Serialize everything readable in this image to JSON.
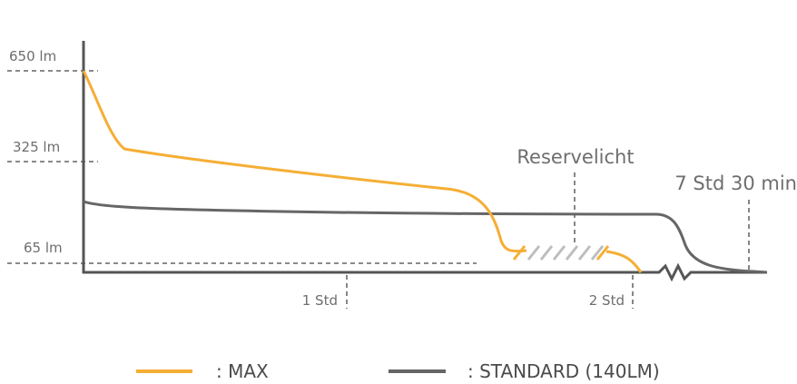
{
  "chart_data": {
    "type": "line",
    "title": "",
    "xlabel": "",
    "ylabel": "",
    "y_ticks": [
      "650 lm",
      "325 lm",
      "65 lm"
    ],
    "x_ticks": [
      "1 Std",
      "2 Std"
    ],
    "annotations": {
      "reserve": "Reservelicht",
      "end_time": "7 Std 30 min"
    },
    "colors": {
      "max": "#F5AE35",
      "standard": "#666666",
      "axis": "#555555",
      "guide": "#444444",
      "reserve": "#BDBDBD"
    },
    "series": [
      {
        "name": ": MAX",
        "values_desc": "curve"
      },
      {
        "name": ": STANDARD (140LM)",
        "values_desc": "curve"
      }
    ]
  }
}
